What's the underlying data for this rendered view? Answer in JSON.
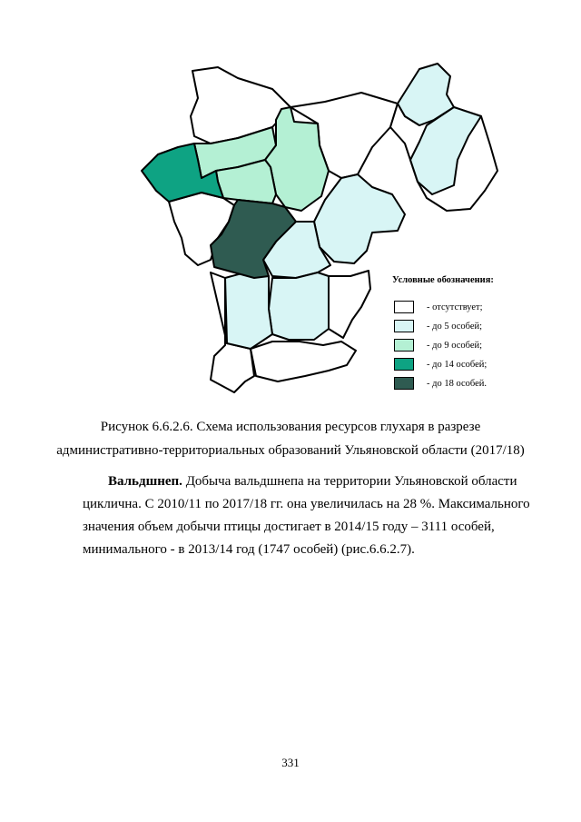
{
  "legend": {
    "title": "Условные обозначения:",
    "items": [
      {
        "label": "- отсутствует;",
        "color": "#ffffff"
      },
      {
        "label": "- до 5 особей;",
        "color": "#d8f5f5"
      },
      {
        "label": "- до 9 особей;",
        "color": "#b4f0d4"
      },
      {
        "label": "- до 14 особей;",
        "color": "#0ea383"
      },
      {
        "label": "- до 18 особей.",
        "color": "#2f5b51"
      }
    ]
  },
  "caption": {
    "line1": "Рисунок 6.6.2.6. Схема использования ресурсов глухаря в разрезе",
    "line2": "административно-территориальных образований Ульяновской области (2017/18)"
  },
  "paragraph": {
    "bold_term": "Вальдшнеп.",
    "line1": " Добыча вальдшнепа на территории Ульяновской области",
    "line2": "циклична. С 2010/11 по 2017/18 гг. она увеличилась на 28 %. Максимального",
    "line3": "значения объем добычи птицы достигает в 2014/15 году – 3111 особей,",
    "line4": "минимального - в 2013/14 год (1747 особей) (рис.6.6.2.7)."
  },
  "page_number": "331"
}
